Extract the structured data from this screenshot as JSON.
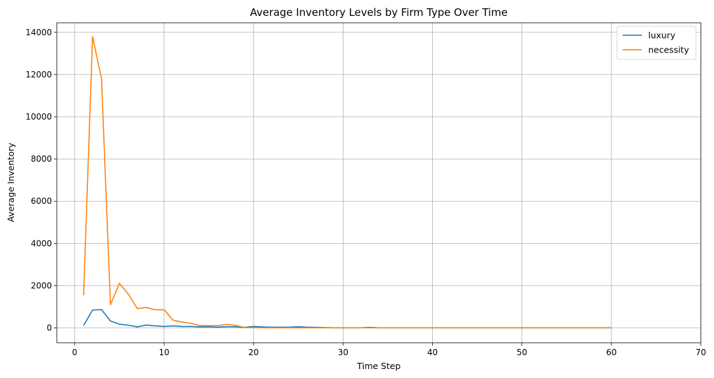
{
  "chart_data": {
    "type": "line",
    "title": "Average Inventory Levels by Firm Type Over Time",
    "xlabel": "Time Step",
    "ylabel": "Average Inventory",
    "xlim": [
      -2,
      70
    ],
    "ylim": [
      -700,
      14450
    ],
    "xticks": [
      0,
      10,
      20,
      30,
      40,
      50,
      60,
      70
    ],
    "yticks": [
      0,
      2000,
      4000,
      6000,
      8000,
      10000,
      12000,
      14000
    ],
    "grid": true,
    "legend_position": "top-right",
    "x": [
      1,
      2,
      3,
      4,
      5,
      6,
      7,
      8,
      9,
      10,
      11,
      12,
      13,
      14,
      15,
      16,
      17,
      18,
      19,
      20,
      21,
      22,
      23,
      24,
      25,
      26,
      27,
      28,
      29,
      30,
      31,
      32,
      33,
      34,
      35,
      36,
      37,
      38,
      39,
      40,
      41,
      42,
      43,
      44,
      45,
      46,
      47,
      48,
      49,
      50,
      51,
      52,
      53,
      54,
      55,
      56,
      57,
      58,
      59,
      60
    ],
    "series": [
      {
        "name": "luxury",
        "color": "#1f77b4",
        "values": [
          120,
          850,
          870,
          330,
          180,
          130,
          50,
          140,
          100,
          70,
          100,
          70,
          70,
          50,
          60,
          40,
          60,
          60,
          30,
          70,
          50,
          40,
          40,
          40,
          60,
          40,
          30,
          20,
          10,
          10,
          10,
          10,
          30,
          10,
          10,
          10,
          10,
          10,
          10,
          10,
          10,
          10,
          10,
          10,
          10,
          10,
          10,
          10,
          10,
          10,
          10,
          10,
          10,
          10,
          10,
          10,
          10,
          10,
          10,
          10
        ]
      },
      {
        "name": "necessity",
        "color": "#ff7f0e",
        "values": [
          1550,
          13800,
          11800,
          1100,
          2120,
          1600,
          920,
          970,
          860,
          860,
          370,
          280,
          220,
          110,
          110,
          110,
          170,
          120,
          20,
          20,
          10,
          10,
          10,
          10,
          10,
          10,
          10,
          10,
          10,
          10,
          10,
          10,
          10,
          10,
          10,
          10,
          10,
          10,
          10,
          10,
          10,
          10,
          10,
          10,
          10,
          10,
          10,
          10,
          10,
          10,
          10,
          10,
          10,
          10,
          10,
          10,
          10,
          10,
          10,
          10
        ]
      }
    ]
  }
}
